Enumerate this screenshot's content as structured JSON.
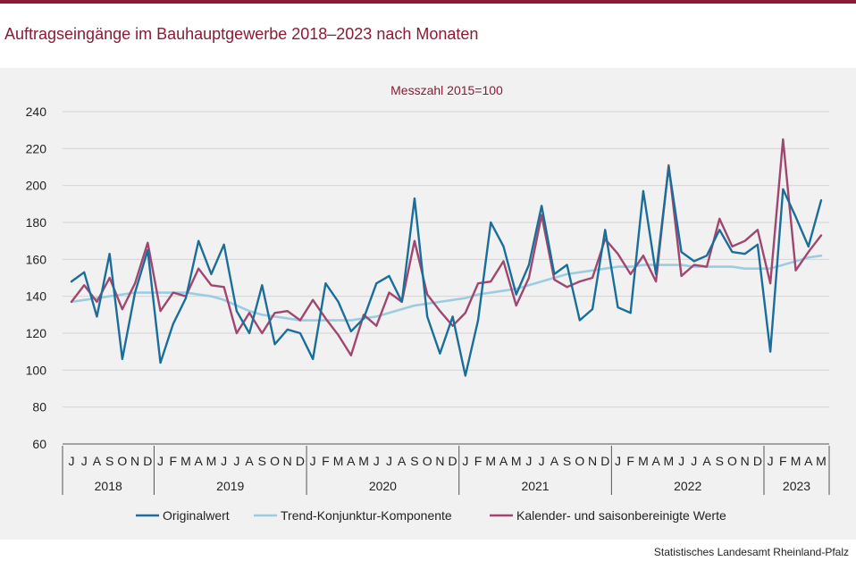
{
  "header": {
    "title": "Auftragseingänge im Bauhauptgewerbe 2018–2023 nach Monaten"
  },
  "footer": {
    "source": "Statistisches Landesamt Rheinland-Pfalz"
  },
  "chart_data": {
    "type": "line",
    "subtitle": "Messzahl 2015=100",
    "ylim": [
      60,
      240
    ],
    "yticks": [
      60,
      80,
      100,
      120,
      140,
      160,
      180,
      200,
      220,
      240
    ],
    "grid": true,
    "legend_position": "bottom",
    "x": [
      "J",
      "J",
      "A",
      "S",
      "O",
      "N",
      "D",
      "J",
      "F",
      "M",
      "A",
      "M",
      "J",
      "J",
      "A",
      "S",
      "O",
      "N",
      "D",
      "J",
      "F",
      "M",
      "A",
      "M",
      "J",
      "J",
      "A",
      "S",
      "O",
      "N",
      "D",
      "J",
      "F",
      "M",
      "A",
      "M",
      "J",
      "J",
      "A",
      "S",
      "O",
      "N",
      "D",
      "J",
      "F",
      "M",
      "A",
      "M",
      "J",
      "J",
      "A",
      "S",
      "O",
      "N",
      "D",
      "J",
      "F",
      "M",
      "A",
      "M"
    ],
    "years": [
      {
        "label": "2018",
        "start": 0,
        "count": 7
      },
      {
        "label": "2019",
        "start": 7,
        "count": 12
      },
      {
        "label": "2020",
        "start": 19,
        "count": 12
      },
      {
        "label": "2021",
        "start": 31,
        "count": 12
      },
      {
        "label": "2022",
        "start": 43,
        "count": 12
      },
      {
        "label": "2023",
        "start": 55,
        "count": 5
      }
    ],
    "series": [
      {
        "name": "Originalwert",
        "color": "#1a6e99",
        "values": [
          148,
          153,
          129,
          163,
          106,
          142,
          165,
          104,
          125,
          139,
          170,
          152,
          168,
          132,
          120,
          146,
          114,
          122,
          120,
          106,
          147,
          137,
          121,
          128,
          147,
          151,
          137,
          193,
          129,
          109,
          129,
          97,
          127,
          180,
          167,
          141,
          157,
          189,
          152,
          157,
          127,
          133,
          176,
          134,
          131,
          197,
          152,
          210,
          164,
          159,
          162,
          176,
          164,
          163,
          168,
          110,
          198,
          183,
          167,
          192
        ]
      },
      {
        "name": "Trend-Konjunktur-Komponente",
        "color": "#9ccce2",
        "values": [
          137,
          138,
          139,
          140,
          141,
          142,
          142,
          142,
          142,
          142,
          141,
          140,
          138,
          135,
          132,
          130,
          129,
          128,
          127,
          127,
          127,
          127,
          127,
          128,
          129,
          131,
          133,
          135,
          136,
          137,
          138,
          139,
          141,
          142,
          143,
          144,
          146,
          148,
          150,
          152,
          153,
          154,
          155,
          156,
          156,
          157,
          157,
          157,
          157,
          156,
          156,
          156,
          156,
          155,
          155,
          155,
          157,
          159,
          161,
          162
        ]
      },
      {
        "name": "Kalender- und saisonbereinigte Werte",
        "color": "#a0466f",
        "values": [
          137,
          146,
          137,
          150,
          133,
          147,
          169,
          132,
          142,
          140,
          155,
          146,
          145,
          120,
          131,
          120,
          131,
          132,
          127,
          138,
          128,
          119,
          108,
          130,
          124,
          142,
          137,
          170,
          141,
          132,
          124,
          131,
          147,
          148,
          159,
          135,
          150,
          184,
          149,
          145,
          148,
          150,
          171,
          163,
          152,
          162,
          148,
          211,
          151,
          157,
          156,
          182,
          167,
          170,
          176,
          147,
          225,
          154,
          164,
          173
        ]
      }
    ]
  }
}
